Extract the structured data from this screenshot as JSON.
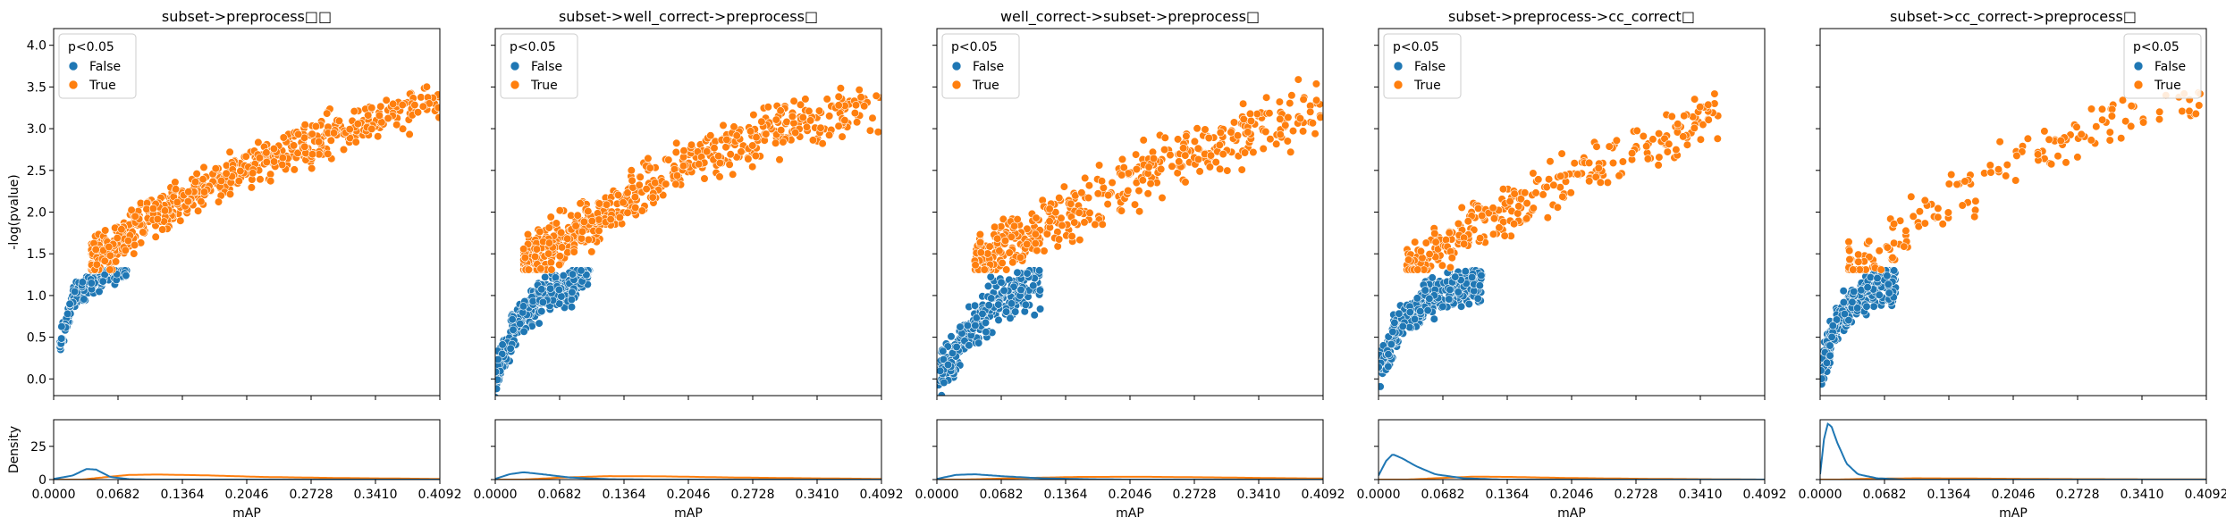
{
  "chart_data": [
    {
      "type": "scatter",
      "title": "subset->preprocess□□",
      "legend_title": "p<0.05",
      "legend_position": "top-left",
      "ylabel": "-log(pvalue)",
      "density_ylabel": "Density",
      "xlabel": "mAP",
      "xlim": [
        0,
        0.4092
      ],
      "ylim": [
        -0.2,
        4.2
      ],
      "x_ticks": [
        "0.0000",
        "0.0682",
        "0.1364",
        "0.2046",
        "0.2728",
        "0.3410",
        "0.4092"
      ],
      "y_ticks": [
        "0.0",
        "0.5",
        "1.0",
        "1.5",
        "2.0",
        "2.5",
        "3.0",
        "3.5",
        "4.0"
      ],
      "density_ylim": [
        0,
        45
      ],
      "density_ticks": [
        "0",
        "25"
      ],
      "series": [
        {
          "name": "False",
          "color": "#1f77b4",
          "n": 180,
          "x_range": [
            0.006,
            0.078
          ],
          "curve": [
            [
              0.006,
              0.38
            ],
            [
              0.02,
              0.95
            ],
            [
              0.04,
              1.2
            ],
            [
              0.078,
              1.3
            ]
          ],
          "spread": 0.12
        },
        {
          "name": "True",
          "color": "#ff7f0e",
          "n": 620,
          "x_range": [
            0.04,
            0.4092
          ],
          "curve": [
            [
              0.04,
              1.38
            ],
            [
              0.1,
              1.95
            ],
            [
              0.2,
              2.5
            ],
            [
              0.3,
              2.95
            ],
            [
              0.4092,
              3.35
            ]
          ],
          "spread": 0.2
        }
      ],
      "density": [
        {
          "name": "False",
          "color": "#1f77b4",
          "curve": [
            [
              0,
              0.5
            ],
            [
              0.02,
              3
            ],
            [
              0.035,
              8
            ],
            [
              0.045,
              7.5
            ],
            [
              0.06,
              2
            ],
            [
              0.08,
              0.3
            ],
            [
              0.1,
              0
            ]
          ]
        },
        {
          "name": "True",
          "color": "#ff7f0e",
          "curve": [
            [
              0.03,
              0
            ],
            [
              0.05,
              1.5
            ],
            [
              0.08,
              3.5
            ],
            [
              0.11,
              3.8
            ],
            [
              0.16,
              3.2
            ],
            [
              0.22,
              2
            ],
            [
              0.3,
              1.2
            ],
            [
              0.4092,
              0.5
            ]
          ]
        }
      ]
    },
    {
      "type": "scatter",
      "title": "subset->well_correct->preprocess□",
      "legend_title": "p<0.05",
      "legend_position": "top-left",
      "xlabel": "mAP",
      "xlim": [
        0,
        0.4092
      ],
      "ylim": [
        -0.2,
        4.2
      ],
      "x_ticks": [
        "0.0000",
        "0.0682",
        "0.1364",
        "0.2046",
        "0.2728",
        "0.3410",
        "0.4092"
      ],
      "density_ylim": [
        0,
        45
      ],
      "series": [
        {
          "name": "False",
          "color": "#1f77b4",
          "n": 320,
          "x_range": [
            0.0,
            0.1
          ],
          "curve": [
            [
              0.0,
              0.0
            ],
            [
              0.02,
              0.6
            ],
            [
              0.05,
              1.0
            ],
            [
              0.1,
              1.25
            ]
          ],
          "spread": 0.18
        },
        {
          "name": "True",
          "color": "#ff7f0e",
          "n": 560,
          "x_range": [
            0.03,
            0.4092
          ],
          "curve": [
            [
              0.03,
              1.35
            ],
            [
              0.1,
              1.85
            ],
            [
              0.2,
              2.6
            ],
            [
              0.3,
              3.0
            ],
            [
              0.4092,
              3.3
            ]
          ],
          "spread": 0.25
        }
      ],
      "density": [
        {
          "name": "False",
          "color": "#1f77b4",
          "curve": [
            [
              0,
              0.5
            ],
            [
              0.015,
              4
            ],
            [
              0.03,
              5.5
            ],
            [
              0.05,
              4
            ],
            [
              0.08,
              1.5
            ],
            [
              0.12,
              0.3
            ],
            [
              0.16,
              0
            ]
          ]
        },
        {
          "name": "True",
          "color": "#ff7f0e",
          "curve": [
            [
              0.03,
              0
            ],
            [
              0.07,
              1.5
            ],
            [
              0.12,
              2.6
            ],
            [
              0.18,
              2.4
            ],
            [
              0.25,
              1.6
            ],
            [
              0.33,
              1
            ],
            [
              0.4092,
              0.5
            ]
          ]
        }
      ]
    },
    {
      "type": "scatter",
      "title": "well_correct->subset->preprocess□",
      "legend_title": "p<0.05",
      "legend_position": "top-left",
      "xlabel": "mAP",
      "xlim": [
        0,
        0.4092
      ],
      "ylim": [
        -0.2,
        4.2
      ],
      "x_ticks": [
        "0.0000",
        "0.0682",
        "0.1364",
        "0.2046",
        "0.2728",
        "0.3410",
        "0.4092"
      ],
      "density_ylim": [
        0,
        45
      ],
      "series": [
        {
          "name": "False",
          "color": "#1f77b4",
          "n": 260,
          "x_range": [
            0.0,
            0.11
          ],
          "curve": [
            [
              0.0,
              0.0
            ],
            [
              0.03,
              0.5
            ],
            [
              0.06,
              0.9
            ],
            [
              0.11,
              1.15
            ]
          ],
          "spread": 0.22
        },
        {
          "name": "True",
          "color": "#ff7f0e",
          "n": 440,
          "x_range": [
            0.04,
            0.4092
          ],
          "curve": [
            [
              0.04,
              1.35
            ],
            [
              0.1,
              1.75
            ],
            [
              0.2,
              2.35
            ],
            [
              0.3,
              2.85
            ],
            [
              0.4092,
              3.25
            ]
          ],
          "spread": 0.28
        }
      ],
      "density": [
        {
          "name": "False",
          "color": "#1f77b4",
          "curve": [
            [
              0,
              0.5
            ],
            [
              0.02,
              3.5
            ],
            [
              0.04,
              4
            ],
            [
              0.07,
              2.5
            ],
            [
              0.11,
              1
            ],
            [
              0.16,
              0.3
            ],
            [
              0.2,
              0
            ]
          ]
        },
        {
          "name": "True",
          "color": "#ff7f0e",
          "curve": [
            [
              0.03,
              0
            ],
            [
              0.08,
              1
            ],
            [
              0.15,
              2
            ],
            [
              0.22,
              2.1
            ],
            [
              0.3,
              1.6
            ],
            [
              0.36,
              1.1
            ],
            [
              0.4092,
              0.8
            ]
          ]
        }
      ]
    },
    {
      "type": "scatter",
      "title": "subset->preprocess->cc_correct□",
      "legend_title": "p<0.05",
      "legend_position": "top-left",
      "xlabel": "mAP",
      "xlim": [
        0,
        0.4092
      ],
      "ylim": [
        -0.2,
        4.2
      ],
      "x_ticks": [
        "0.0000",
        "0.0682",
        "0.1364",
        "0.2046",
        "0.2728",
        "0.3410",
        "0.4092"
      ],
      "density_ylim": [
        0,
        45
      ],
      "series": [
        {
          "name": "False",
          "color": "#1f77b4",
          "n": 340,
          "x_range": [
            0.0,
            0.11
          ],
          "curve": [
            [
              0.0,
              0.1
            ],
            [
              0.02,
              0.6
            ],
            [
              0.05,
              0.95
            ],
            [
              0.11,
              1.2
            ]
          ],
          "spread": 0.18
        },
        {
          "name": "True",
          "color": "#ff7f0e",
          "n": 300,
          "x_range": [
            0.03,
            0.36
          ],
          "curve": [
            [
              0.03,
              1.35
            ],
            [
              0.1,
              1.8
            ],
            [
              0.2,
              2.4
            ],
            [
              0.3,
              2.85
            ],
            [
              0.36,
              3.2
            ]
          ],
          "spread": 0.25
        }
      ],
      "density": [
        {
          "name": "False",
          "color": "#1f77b4",
          "curve": [
            [
              0,
              3
            ],
            [
              0.008,
              14
            ],
            [
              0.015,
              19
            ],
            [
              0.025,
              16
            ],
            [
              0.04,
              10
            ],
            [
              0.06,
              4
            ],
            [
              0.09,
              1
            ],
            [
              0.13,
              0
            ]
          ]
        },
        {
          "name": "True",
          "color": "#ff7f0e",
          "curve": [
            [
              0.03,
              0
            ],
            [
              0.06,
              1
            ],
            [
              0.1,
              2.2
            ],
            [
              0.14,
              2
            ],
            [
              0.2,
              1.2
            ],
            [
              0.28,
              0.6
            ],
            [
              0.36,
              0.2
            ],
            [
              0.4092,
              0
            ]
          ]
        }
      ]
    },
    {
      "type": "scatter",
      "title": "subset->cc_correct->preprocess□",
      "legend_title": "p<0.05",
      "legend_position": "top-right",
      "xlabel": "mAP",
      "xlim": [
        0,
        0.4092
      ],
      "ylim": [
        -0.2,
        4.2
      ],
      "x_ticks": [
        "0.0000",
        "0.0682",
        "0.1364",
        "0.2046",
        "0.2728",
        "0.3410",
        "0.4092"
      ],
      "density_ylim": [
        0,
        45
      ],
      "series": [
        {
          "name": "False",
          "color": "#1f77b4",
          "n": 320,
          "x_range": [
            0.0,
            0.08
          ],
          "curve": [
            [
              0.0,
              0.0
            ],
            [
              0.015,
              0.6
            ],
            [
              0.04,
              1.0
            ],
            [
              0.08,
              1.2
            ]
          ],
          "spread": 0.18
        },
        {
          "name": "True",
          "color": "#ff7f0e",
          "n": 160,
          "x_range": [
            0.03,
            0.4092
          ],
          "curve": [
            [
              0.03,
              1.35
            ],
            [
              0.08,
              1.7
            ],
            [
              0.14,
              2.15
            ],
            [
              0.22,
              2.7
            ],
            [
              0.3,
              3.0
            ],
            [
              0.4092,
              3.4
            ]
          ],
          "spread": 0.25
        }
      ],
      "density": [
        {
          "name": "False",
          "color": "#1f77b4",
          "curve": [
            [
              0,
              4
            ],
            [
              0.004,
              30
            ],
            [
              0.008,
              42
            ],
            [
              0.012,
              40
            ],
            [
              0.018,
              28
            ],
            [
              0.028,
              12
            ],
            [
              0.04,
              4
            ],
            [
              0.06,
              1
            ],
            [
              0.09,
              0
            ]
          ]
        },
        {
          "name": "True",
          "color": "#ff7f0e",
          "curve": [
            [
              0.02,
              0
            ],
            [
              0.05,
              0.6
            ],
            [
              0.1,
              1
            ],
            [
              0.16,
              0.8
            ],
            [
              0.25,
              0.4
            ],
            [
              0.4092,
              0.1
            ]
          ]
        }
      ]
    }
  ]
}
